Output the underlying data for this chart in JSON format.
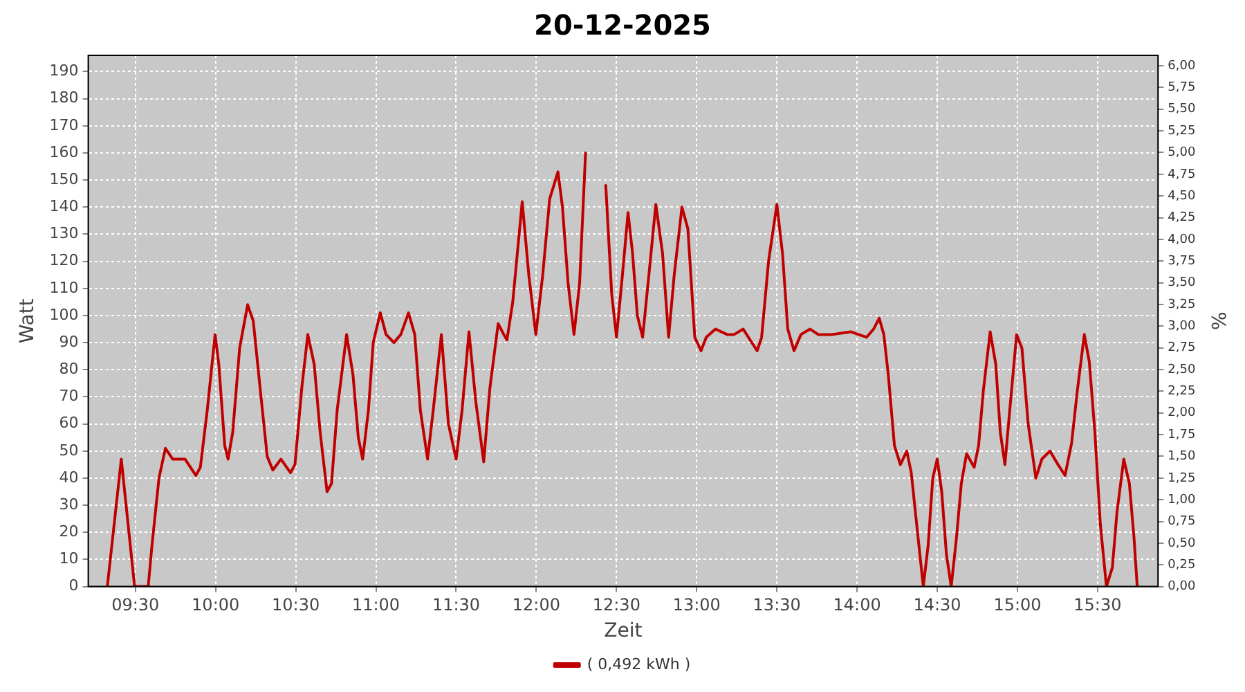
{
  "chart_data": {
    "type": "line",
    "title": "20-12-2025",
    "xlabel": "Zeit",
    "ylabel": "Watt",
    "y2label": "%",
    "xlim": [
      9.206,
      15.877
    ],
    "xticks": [
      {
        "value": 9.5,
        "label": "09:30"
      },
      {
        "value": 10,
        "label": "10:00"
      },
      {
        "value": 10.5,
        "label": "10:30"
      },
      {
        "value": 11,
        "label": "11:00"
      },
      {
        "value": 11.5,
        "label": "11:30"
      },
      {
        "value": 12,
        "label": "12:00"
      },
      {
        "value": 12.5,
        "label": "12:30"
      },
      {
        "value": 13,
        "label": "13:00"
      },
      {
        "value": 13.5,
        "label": "13:30"
      },
      {
        "value": 14,
        "label": "14:00"
      },
      {
        "value": 14.5,
        "label": "14:30"
      },
      {
        "value": 15,
        "label": "15:00"
      },
      {
        "value": 15.5,
        "label": "15:30"
      }
    ],
    "ylim": [
      0,
      196
    ],
    "yticks": [
      0,
      10,
      20,
      30,
      40,
      50,
      60,
      70,
      80,
      90,
      100,
      110,
      120,
      130,
      140,
      150,
      160,
      170,
      180,
      190
    ],
    "y2lim": [
      0,
      6.12
    ],
    "y2ticks": [
      {
        "value": 0,
        "label": "0,00"
      },
      {
        "value": 0.25,
        "label": "0,25"
      },
      {
        "value": 0.5,
        "label": "0,50"
      },
      {
        "value": 0.75,
        "label": "0,75"
      },
      {
        "value": 1,
        "label": "1,00"
      },
      {
        "value": 1.25,
        "label": "1,25"
      },
      {
        "value": 1.5,
        "label": "1,50"
      },
      {
        "value": 1.75,
        "label": "1,75"
      },
      {
        "value": 2,
        "label": "2,00"
      },
      {
        "value": 2.25,
        "label": "2,25"
      },
      {
        "value": 2.5,
        "label": "2,50"
      },
      {
        "value": 2.75,
        "label": "2,75"
      },
      {
        "value": 3,
        "label": "3,00"
      },
      {
        "value": 3.25,
        "label": "3,25"
      },
      {
        "value": 3.5,
        "label": "3,50"
      },
      {
        "value": 3.75,
        "label": "3,75"
      },
      {
        "value": 4,
        "label": "4,00"
      },
      {
        "value": 4.25,
        "label": "4,25"
      },
      {
        "value": 4.5,
        "label": "4,50"
      },
      {
        "value": 4.75,
        "label": "4,75"
      },
      {
        "value": 5,
        "label": "5,00"
      },
      {
        "value": 5.25,
        "label": "5,25"
      },
      {
        "value": 5.5,
        "label": "5,50"
      },
      {
        "value": 5.75,
        "label": "5,75"
      },
      {
        "value": 6,
        "label": "6,00"
      }
    ],
    "grid": true,
    "legend": "bottom",
    "marker": "none",
    "line_style": "solid",
    "series": [
      {
        "name": "( 0,492 kWh )",
        "color": "#c00000",
        "x": [
          9.325,
          9.412,
          9.495,
          9.58,
          9.603,
          9.647,
          9.687,
          9.733,
          9.81,
          9.877,
          9.905,
          9.948,
          9.997,
          10.02,
          10.057,
          10.078,
          10.107,
          10.15,
          10.2,
          10.235,
          10.278,
          10.322,
          10.357,
          10.408,
          10.467,
          10.495,
          10.537,
          10.575,
          10.615,
          10.652,
          10.695,
          10.723,
          10.758,
          10.817,
          10.857,
          10.89,
          10.917,
          10.953,
          10.983,
          11.027,
          11.063,
          11.112,
          11.155,
          11.203,
          11.242,
          11.277,
          11.322,
          11.357,
          11.408,
          11.452,
          11.5,
          11.537,
          11.58,
          11.623,
          11.672,
          11.71,
          11.762,
          11.797,
          11.817,
          11.853,
          11.912,
          11.953,
          11.997,
          12.04,
          12.083,
          12.135,
          12.163,
          12.198,
          12.235,
          12.27,
          12.307,
          12.337,
          12.39,
          12.433,
          12.47,
          12.5,
          12.537,
          12.572,
          12.6,
          12.63,
          12.663,
          12.702,
          12.745,
          12.787,
          12.825,
          12.86,
          12.908,
          12.945,
          12.988,
          13.027,
          13.06,
          13.117,
          13.19,
          13.233,
          13.29,
          13.333,
          13.377,
          13.405,
          13.448,
          13.5,
          13.535,
          13.568,
          13.607,
          13.65,
          13.707,
          13.758,
          13.845,
          13.96,
          14.06,
          14.103,
          14.138,
          14.167,
          14.195,
          14.233,
          14.27,
          14.31,
          14.338,
          14.377,
          14.413,
          14.443,
          14.472,
          14.5,
          14.528,
          14.557,
          14.587,
          14.62,
          14.65,
          14.683,
          14.73,
          14.758,
          14.787,
          14.83,
          14.865,
          14.893,
          14.922,
          14.952,
          14.995,
          15.028,
          15.067,
          15.115,
          15.152,
          15.203,
          15.253,
          15.297,
          15.338,
          15.373,
          15.417,
          15.448,
          15.483,
          15.517,
          15.555,
          15.592,
          15.62,
          15.663,
          15.698,
          15.727,
          15.747
        ],
        "values": [
          0,
          47,
          0,
          0,
          15,
          40,
          51,
          47,
          47,
          41,
          44,
          65,
          93,
          82,
          52,
          47,
          57,
          88,
          104,
          98,
          73,
          48,
          43,
          47,
          42,
          45,
          73,
          93,
          82,
          57,
          35,
          38,
          65,
          93,
          78,
          55,
          47,
          65,
          90,
          101,
          93,
          90,
          93,
          101,
          93,
          65,
          47,
          65,
          93,
          60,
          47,
          65,
          94,
          68,
          46,
          73,
          97,
          93,
          91,
          105,
          142,
          115,
          93,
          115,
          143,
          153,
          140,
          112,
          93,
          112,
          160,
          null,
          null,
          148,
          108,
          92,
          115,
          138,
          123,
          100,
          92,
          115,
          141,
          123,
          92,
          115,
          140,
          132,
          92,
          87,
          92,
          95,
          93,
          93,
          95,
          91,
          87,
          92,
          120,
          141,
          123,
          95,
          87,
          93,
          95,
          93,
          93,
          94,
          92,
          95,
          99,
          93,
          78,
          52,
          45,
          50,
          42,
          20,
          0,
          15,
          40,
          47,
          35,
          12,
          0,
          18,
          38,
          49,
          44,
          52,
          72,
          94,
          82,
          57,
          45,
          65,
          93,
          88,
          60,
          40,
          47,
          50,
          45,
          41,
          53,
          72,
          93,
          83,
          57,
          23,
          0,
          7,
          27,
          47,
          38,
          18,
          0
        ]
      }
    ]
  }
}
